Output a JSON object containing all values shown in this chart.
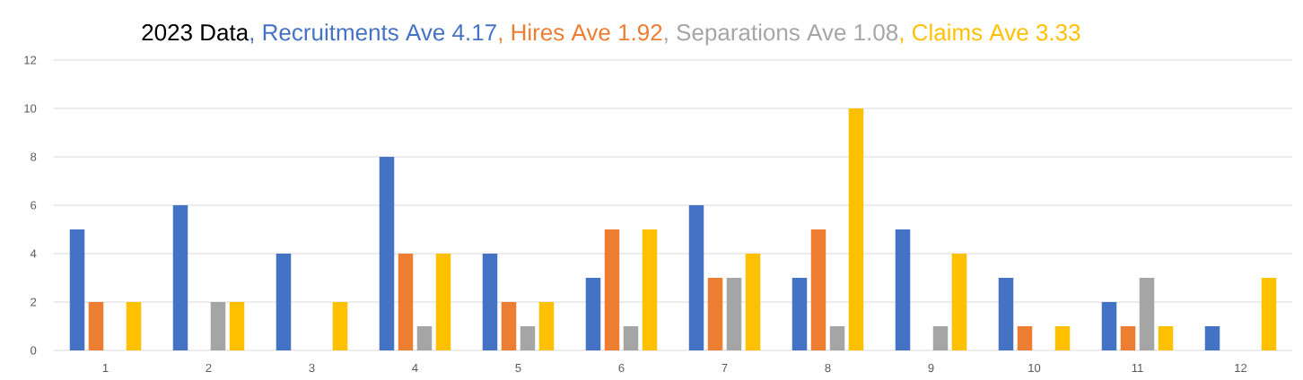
{
  "chart_data": {
    "type": "bar",
    "title": "2023 Data",
    "categories": [
      "1",
      "2",
      "3",
      "4",
      "5",
      "6",
      "7",
      "8",
      "9",
      "10",
      "11",
      "12"
    ],
    "series": [
      {
        "name": ", Recruitments Ave 4.17",
        "color": "#4472c4",
        "values": [
          5,
          6,
          4,
          8,
          4,
          3,
          6,
          3,
          5,
          3,
          2,
          1
        ]
      },
      {
        "name": ", Hires Ave 1.92",
        "color": "#ed7d31",
        "values": [
          2,
          null,
          null,
          4,
          2,
          5,
          3,
          5,
          null,
          1,
          1,
          null
        ]
      },
      {
        "name": ", Separations Ave 1.08",
        "color": "#a5a5a5",
        "values": [
          null,
          2,
          null,
          1,
          1,
          1,
          3,
          1,
          1,
          null,
          3,
          null
        ]
      },
      {
        "name": ", Claims Ave 3.33",
        "color": "#ffc000",
        "values": [
          2,
          2,
          2,
          4,
          2,
          5,
          4,
          10,
          4,
          1,
          1,
          3
        ]
      }
    ],
    "ylim": [
      0,
      12
    ],
    "yticks": [
      0,
      2,
      4,
      6,
      8,
      10,
      12
    ],
    "grid": "y"
  }
}
